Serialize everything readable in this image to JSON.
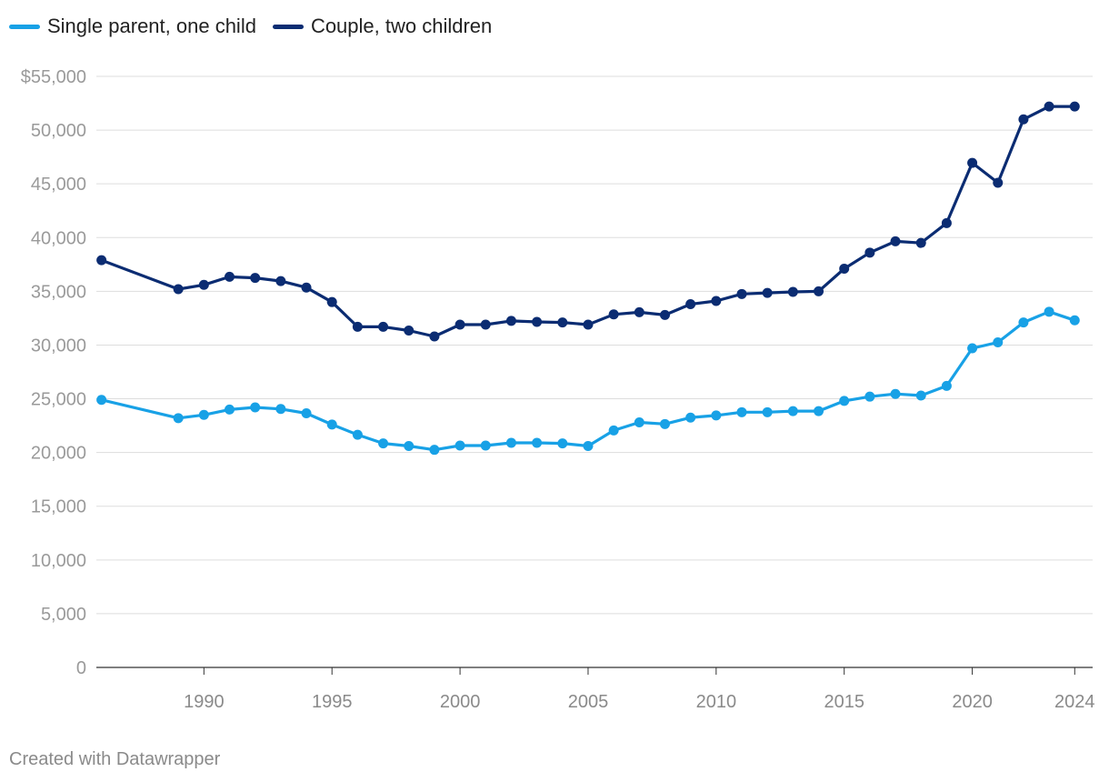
{
  "legend": [
    {
      "label": "Single parent, one child",
      "color": "#18a1e6"
    },
    {
      "label": "Couple, two children",
      "color": "#0b2c72"
    }
  ],
  "footer": "Created with Datawrapper",
  "chart_data": {
    "type": "line",
    "title": "",
    "xlabel": "",
    "ylabel": "",
    "xlim": [
      1985.8,
      2024.7
    ],
    "ylim": [
      0,
      55000
    ],
    "grid": true,
    "y_ticks": [
      {
        "value": 55000,
        "label": "$55,000"
      },
      {
        "value": 50000,
        "label": "50,000"
      },
      {
        "value": 45000,
        "label": "45,000"
      },
      {
        "value": 40000,
        "label": "40,000"
      },
      {
        "value": 35000,
        "label": "35,000"
      },
      {
        "value": 30000,
        "label": "30,000"
      },
      {
        "value": 25000,
        "label": "25,000"
      },
      {
        "value": 20000,
        "label": "20,000"
      },
      {
        "value": 15000,
        "label": "15,000"
      },
      {
        "value": 10000,
        "label": "10,000"
      },
      {
        "value": 5000,
        "label": "5,000"
      },
      {
        "value": 0,
        "label": "0"
      }
    ],
    "x_ticks": [
      {
        "value": 1990,
        "label": "1990"
      },
      {
        "value": 1995,
        "label": "1995"
      },
      {
        "value": 2000,
        "label": "2000"
      },
      {
        "value": 2005,
        "label": "2005"
      },
      {
        "value": 2010,
        "label": "2010"
      },
      {
        "value": 2015,
        "label": "2015"
      },
      {
        "value": 2020,
        "label": "2020"
      },
      {
        "value": 2024,
        "label": "2024"
      }
    ],
    "x": [
      1986,
      1989,
      1990,
      1991,
      1992,
      1993,
      1994,
      1995,
      1996,
      1997,
      1998,
      1999,
      2000,
      2001,
      2002,
      2003,
      2004,
      2005,
      2006,
      2007,
      2008,
      2009,
      2010,
      2011,
      2012,
      2013,
      2014,
      2015,
      2016,
      2017,
      2018,
      2019,
      2020,
      2021,
      2022,
      2023,
      2024
    ],
    "series": [
      {
        "name": "Single parent, one child",
        "color": "#18a1e6",
        "values": [
          24900,
          23200,
          23500,
          24000,
          24200,
          24050,
          23650,
          22600,
          21650,
          20850,
          20600,
          20250,
          20650,
          20650,
          20900,
          20900,
          20850,
          20600,
          22050,
          22800,
          22650,
          23250,
          23450,
          23750,
          23750,
          23850,
          23850,
          24800,
          25200,
          25450,
          25300,
          26200,
          29700,
          30250,
          32100,
          33100,
          32300
        ]
      },
      {
        "name": "Couple, two children",
        "color": "#0b2c72",
        "values": [
          37900,
          35200,
          35600,
          36350,
          36250,
          35950,
          35350,
          34000,
          31700,
          31700,
          31350,
          30800,
          31900,
          31900,
          32250,
          32150,
          32100,
          31900,
          32850,
          33050,
          32800,
          33800,
          34100,
          34750,
          34850,
          34950,
          35000,
          37100,
          38600,
          39650,
          39500,
          41350,
          46950,
          45100,
          51000,
          52200,
          52200
        ]
      }
    ]
  }
}
